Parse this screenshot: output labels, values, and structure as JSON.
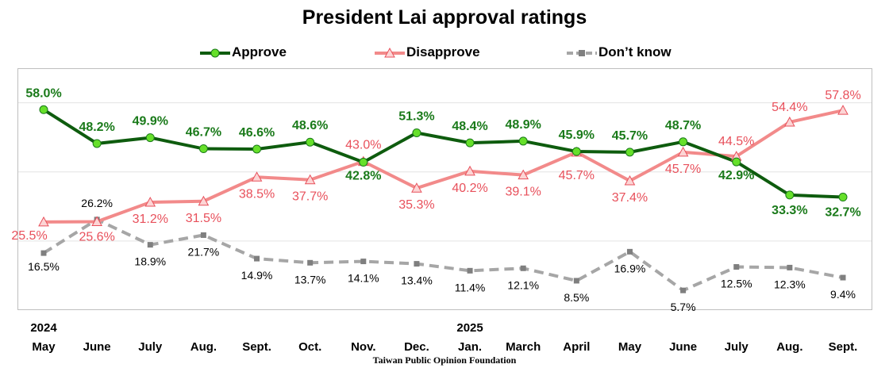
{
  "chart_data": {
    "type": "line",
    "title": "President Lai approval ratings",
    "source": "Taiwan Public Opinion Foundation",
    "categories": [
      "May",
      "June",
      "July",
      "Aug.",
      "Sept.",
      "Oct.",
      "Nov.",
      "Dec.",
      "Jan.",
      "March",
      "April",
      "May",
      "June",
      "July",
      "Aug.",
      "Sept."
    ],
    "year_labels": [
      {
        "index": 0,
        "label": "2024"
      },
      {
        "index": 8,
        "label": "2025"
      }
    ],
    "ylim": [
      0,
      70
    ],
    "grid": "horizontal",
    "legend_position": "top",
    "series": [
      {
        "name": "Approve",
        "color": "#1a7a1a",
        "line_color": "#0e5c0e",
        "marker": "circle",
        "label_position": "above",
        "values": [
          58.0,
          48.2,
          49.9,
          46.7,
          46.6,
          48.6,
          42.8,
          51.3,
          48.4,
          48.9,
          45.9,
          45.7,
          48.7,
          42.9,
          33.3,
          32.7
        ],
        "labels": [
          "58.0%",
          "48.2%",
          "49.9%",
          "46.7%",
          "46.6%",
          "48.6%",
          "42.8%",
          "51.3%",
          "48.4%",
          "48.9%",
          "45.9%",
          "45.7%",
          "48.7%",
          "42.9%",
          "33.3%",
          "32.7%"
        ]
      },
      {
        "name": "Disapprove",
        "color": "#e8505b",
        "line_color": "#f28a8a",
        "marker": "triangle",
        "label_position": "below",
        "values": [
          25.5,
          25.6,
          31.2,
          31.5,
          38.5,
          37.7,
          43.0,
          35.3,
          40.2,
          39.1,
          45.7,
          37.4,
          45.7,
          44.5,
          54.4,
          57.8
        ],
        "labels": [
          "25.5%",
          "25.6%",
          "31.2%",
          "31.5%",
          "38.5%",
          "37.7%",
          "43.0%",
          "35.3%",
          "40.2%",
          "39.1%",
          "45.7%",
          "37.4%",
          "45.7%",
          "44.5%",
          "54.4%",
          "57.8%"
        ]
      },
      {
        "name": "Don’t know",
        "color": "#000000",
        "line_color": "#a6a6a6",
        "marker": "square",
        "label_position": "below",
        "values": [
          16.5,
          26.2,
          18.9,
          21.7,
          14.9,
          13.7,
          14.1,
          13.4,
          11.4,
          12.1,
          8.5,
          16.9,
          5.7,
          12.5,
          12.3,
          9.4
        ],
        "labels": [
          "16.5%",
          "26.2%",
          "18.9%",
          "21.7%",
          "14.9%",
          "13.7%",
          "14.1%",
          "13.4%",
          "11.4%",
          "12.1%",
          "8.5%",
          "16.9%",
          "5.7%",
          "12.5%",
          "12.3%",
          "9.4%"
        ]
      }
    ]
  }
}
